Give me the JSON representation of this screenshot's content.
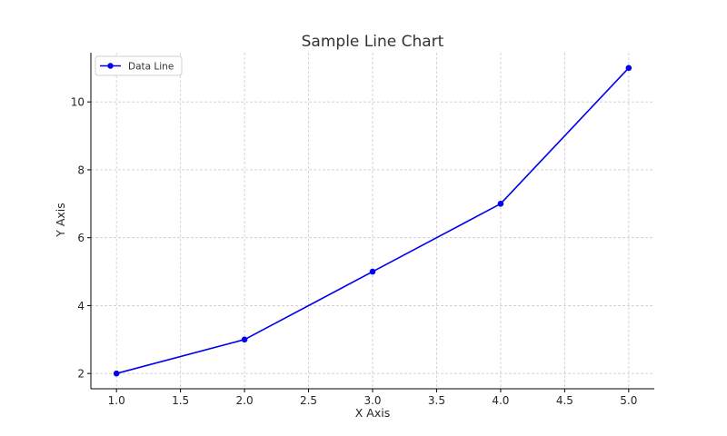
{
  "chart_data": {
    "type": "line",
    "title": "Sample Line Chart",
    "xlabel": "X Axis",
    "ylabel": "Y Axis",
    "x": [
      1.0,
      2.0,
      3.0,
      4.0,
      5.0
    ],
    "series": [
      {
        "name": "Data Line",
        "values": [
          2,
          3,
          5,
          7,
          11
        ],
        "color": "#0000ee",
        "marker": "circle"
      }
    ],
    "xlim": [
      0.8,
      5.2
    ],
    "ylim": [
      1.55,
      11.45
    ],
    "xticks": [
      1.0,
      1.5,
      2.0,
      2.5,
      3.0,
      3.5,
      4.0,
      4.5,
      5.0
    ],
    "xtick_labels": [
      "1.0",
      "1.5",
      "2.0",
      "2.5",
      "3.0",
      "3.5",
      "4.0",
      "4.5",
      "5.0"
    ],
    "yticks": [
      2,
      4,
      6,
      8,
      10
    ],
    "ytick_labels": [
      "2",
      "4",
      "6",
      "8",
      "10"
    ],
    "grid": true,
    "grid_style": "dashed",
    "grid_color": "#cccccc",
    "legend_position": "top-left",
    "spines": "left-bottom"
  }
}
